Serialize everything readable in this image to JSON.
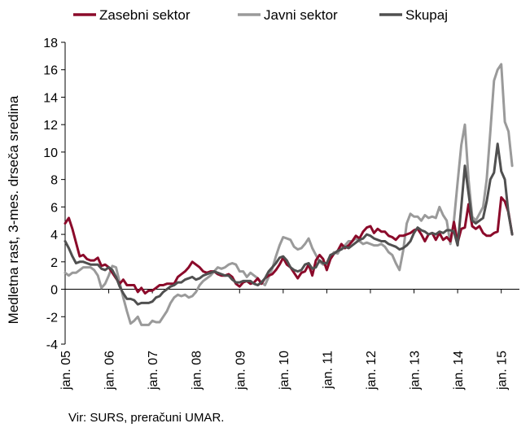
{
  "chart_data": {
    "type": "line",
    "ylabel": "Medletna rast, 3-mes. drseča sredina",
    "ylim": [
      -4,
      18
    ],
    "yticks": [
      -4,
      -2,
      0,
      2,
      4,
      6,
      8,
      10,
      12,
      14,
      16,
      18
    ],
    "xlabels": [
      "jan. 05",
      "jan. 06",
      "jan. 07",
      "jan. 08",
      "jan. 09",
      "jan. 10",
      "jan. 11",
      "jan. 12",
      "jan. 13",
      "jan. 14",
      "jan. 15"
    ],
    "x_start": "2005-01",
    "months": [
      "2005-01",
      "2005-02",
      "2005-03",
      "2005-04",
      "2005-05",
      "2005-06",
      "2005-07",
      "2005-08",
      "2005-09",
      "2005-10",
      "2005-11",
      "2005-12",
      "2006-01",
      "2006-02",
      "2006-03",
      "2006-04",
      "2006-05",
      "2006-06",
      "2006-07",
      "2006-08",
      "2006-09",
      "2006-10",
      "2006-11",
      "2006-12",
      "2007-01",
      "2007-02",
      "2007-03",
      "2007-04",
      "2007-05",
      "2007-06",
      "2007-07",
      "2007-08",
      "2007-09",
      "2007-10",
      "2007-11",
      "2007-12",
      "2008-01",
      "2008-02",
      "2008-03",
      "2008-04",
      "2008-05",
      "2008-06",
      "2008-07",
      "2008-08",
      "2008-09",
      "2008-10",
      "2008-11",
      "2008-12",
      "2009-01",
      "2009-02",
      "2009-03",
      "2009-04",
      "2009-05",
      "2009-06",
      "2009-07",
      "2009-08",
      "2009-09",
      "2009-10",
      "2009-11",
      "2009-12",
      "2010-01",
      "2010-02",
      "2010-03",
      "2010-04",
      "2010-05",
      "2010-06",
      "2010-07",
      "2010-08",
      "2010-09",
      "2010-10",
      "2010-11",
      "2010-12",
      "2011-01",
      "2011-02",
      "2011-03",
      "2011-04",
      "2011-05",
      "2011-06",
      "2011-07",
      "2011-08",
      "2011-09",
      "2011-10",
      "2011-11",
      "2011-12",
      "2012-01",
      "2012-02",
      "2012-03",
      "2012-04",
      "2012-05",
      "2012-06",
      "2012-07",
      "2012-08",
      "2012-09",
      "2012-10",
      "2012-11",
      "2012-12",
      "2013-01",
      "2013-02",
      "2013-03",
      "2013-04",
      "2013-05",
      "2013-06",
      "2013-07",
      "2013-08",
      "2013-09",
      "2013-10",
      "2013-11",
      "2013-12",
      "2014-01",
      "2014-02",
      "2014-03",
      "2014-04",
      "2014-05",
      "2014-06",
      "2014-07",
      "2014-08",
      "2014-09",
      "2014-10",
      "2014-11",
      "2014-12",
      "2015-01",
      "2015-02",
      "2015-03",
      "2015-04",
      "2015-05",
      "2015-06"
    ],
    "series": [
      {
        "name": "Zasebni sektor",
        "color": "#8b0a2a",
        "values": [
          4.8,
          5.2,
          4.4,
          3.4,
          2.4,
          2.5,
          2.2,
          2.1,
          2.1,
          2.3,
          1.7,
          1.8,
          1.6,
          1.2,
          0.8,
          0.4,
          0.7,
          0.3,
          0.3,
          0.3,
          -0.2,
          0.1,
          -0.3,
          -0.1,
          -0.1,
          0.1,
          0.3,
          0.3,
          0.4,
          0.4,
          0.4,
          0.9,
          1.1,
          1.3,
          1.6,
          2.0,
          1.8,
          1.6,
          1.3,
          1.2,
          1.3,
          1.3,
          1.1,
          1.0,
          1.0,
          1.1,
          0.9,
          0.4,
          0.2,
          0.5,
          0.6,
          0.4,
          0.5,
          0.8,
          0.4,
          0.8,
          1.0,
          1.1,
          1.4,
          1.8,
          2.3,
          1.8,
          1.6,
          1.2,
          0.8,
          1.2,
          1.3,
          1.8,
          1.0,
          2.1,
          2.5,
          2.2,
          1.4,
          2.2,
          2.6,
          2.8,
          3.3,
          3.0,
          3.2,
          3.5,
          3.9,
          3.7,
          4.2,
          4.5,
          4.6,
          4.1,
          4.4,
          4.2,
          4.2,
          3.9,
          3.8,
          3.6,
          3.9,
          3.9,
          4.0,
          4.1,
          4.3,
          4.4,
          4.0,
          3.5,
          4.0,
          4.1,
          3.6,
          4.1,
          3.6,
          3.8,
          3.5,
          4.9,
          3.4,
          4.4,
          4.5,
          6.2,
          4.6,
          4.4,
          4.6,
          4.1,
          3.9,
          3.9,
          4.1,
          4.2,
          6.7,
          6.4,
          5.6,
          4.0
        ]
      },
      {
        "name": "Javni sektor",
        "color": "#9a9a9a",
        "values": [
          1.2,
          1.0,
          1.2,
          1.2,
          1.4,
          1.6,
          1.6,
          1.6,
          1.4,
          1.0,
          0.1,
          0.4,
          1.0,
          1.7,
          1.6,
          0.5,
          -0.6,
          -1.6,
          -2.5,
          -2.3,
          -2.0,
          -2.6,
          -2.6,
          -2.6,
          -2.3,
          -2.4,
          -2.4,
          -2.0,
          -1.6,
          -1.0,
          -0.6,
          -0.4,
          -0.5,
          -0.4,
          -0.6,
          -0.5,
          -0.2,
          0.3,
          0.6,
          0.8,
          1.0,
          1.3,
          1.6,
          1.5,
          1.6,
          1.8,
          1.9,
          1.8,
          1.3,
          1.3,
          0.9,
          1.2,
          1.0,
          0.8,
          0.5,
          0.3,
          0.9,
          1.5,
          2.4,
          3.2,
          3.8,
          3.7,
          3.6,
          3.1,
          2.9,
          3.0,
          3.3,
          3.7,
          3.0,
          2.5,
          2.0,
          1.8,
          1.8,
          2.4,
          2.7,
          2.6,
          3.1,
          3.2,
          3.5,
          3.5,
          3.7,
          3.5,
          3.3,
          3.4,
          3.3,
          3.2,
          3.2,
          3.3,
          3.1,
          2.7,
          2.5,
          1.9,
          1.4,
          2.8,
          4.8,
          5.5,
          5.3,
          5.3,
          5.0,
          5.4,
          5.2,
          5.3,
          5.2,
          6.0,
          5.4,
          5.0,
          3.3,
          5.0,
          7.8,
          10.5,
          12.0,
          8.0,
          5.3,
          5.0,
          5.5,
          6.0,
          8.0,
          11.5,
          15.2,
          16.0,
          16.4,
          12.2,
          11.5,
          9.0
        ]
      },
      {
        "name": "Skupaj",
        "color": "#505050",
        "values": [
          3.5,
          3.0,
          2.4,
          1.9,
          2.0,
          2.0,
          1.9,
          1.8,
          1.8,
          1.8,
          1.5,
          1.4,
          1.6,
          1.4,
          0.9,
          0.2,
          -0.3,
          -0.7,
          -0.7,
          -0.8,
          -1.1,
          -1.0,
          -1.0,
          -1.0,
          -0.9,
          -0.6,
          -0.5,
          -0.2,
          0.0,
          0.2,
          0.3,
          0.5,
          0.5,
          0.7,
          0.8,
          0.9,
          0.7,
          0.8,
          1.0,
          1.1,
          1.2,
          1.3,
          1.2,
          1.1,
          1.0,
          1.0,
          0.7,
          0.5,
          0.5,
          0.6,
          0.6,
          0.6,
          0.4,
          0.3,
          0.5,
          0.8,
          1.3,
          1.6,
          1.9,
          2.3,
          2.4,
          2.1,
          1.6,
          1.4,
          1.3,
          1.4,
          1.8,
          1.9,
          1.5,
          1.6,
          2.1,
          1.9,
          1.9,
          2.5,
          2.6,
          2.8,
          2.9,
          3.1,
          3.0,
          3.2,
          3.4,
          3.6,
          3.7,
          4.0,
          3.9,
          3.7,
          3.6,
          3.5,
          3.5,
          3.3,
          3.2,
          3.1,
          2.9,
          3.0,
          3.2,
          3.5,
          4.1,
          4.5,
          4.3,
          4.2,
          4.0,
          4.1,
          4.0,
          4.2,
          4.1,
          4.3,
          4.3,
          4.2,
          3.2,
          6.0,
          9.0,
          7.0,
          5.0,
          4.8,
          5.0,
          5.2,
          6.4,
          8.0,
          8.5,
          10.6,
          8.6,
          8.0,
          5.5,
          4.0
        ]
      }
    ],
    "grid": false,
    "legend_position": "top"
  },
  "source_text": "Vir: SURS, preračuni UMAR."
}
